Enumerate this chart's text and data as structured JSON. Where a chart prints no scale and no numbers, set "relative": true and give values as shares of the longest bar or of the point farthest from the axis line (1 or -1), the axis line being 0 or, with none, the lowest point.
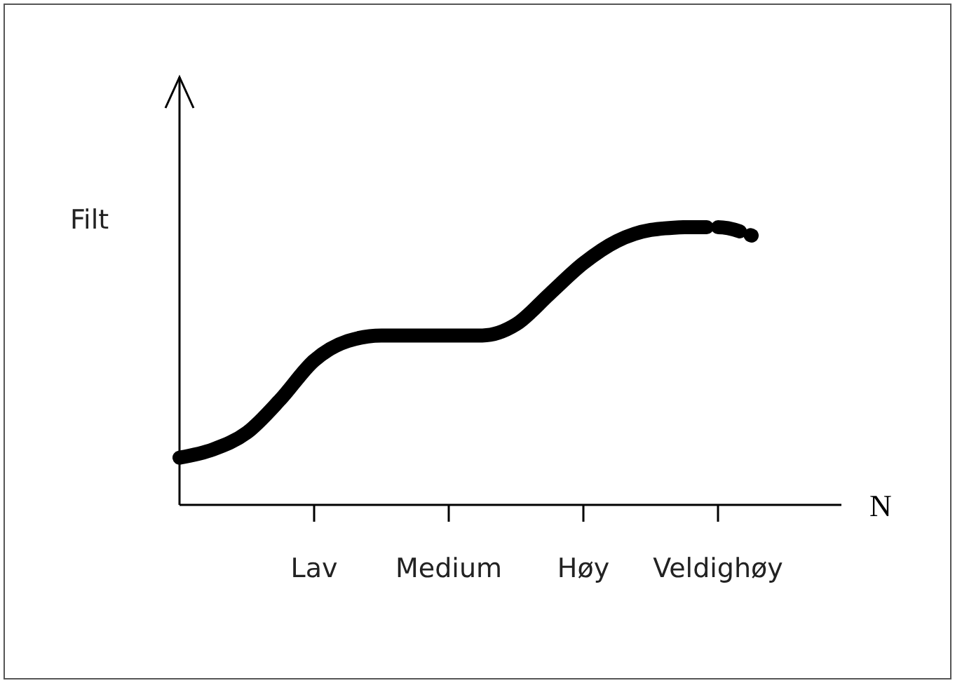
{
  "chart_data": {
    "type": "line",
    "relative": true,
    "xlabel": "N",
    "ylabel": "Filt",
    "categories": [
      null,
      null,
      null,
      null,
      "Lav",
      null,
      null,
      null,
      "Medium",
      null,
      null,
      null,
      "Høy",
      null,
      null,
      null,
      "Veldighøy",
      null
    ],
    "series": [
      {
        "color": "#000000",
        "line_style": "solid",
        "values": [
          0.17,
          0.2,
          0.26,
          0.38,
          0.52,
          0.59,
          0.61,
          0.61,
          0.61,
          0.61,
          0.65,
          0.76,
          0.87,
          0.95,
          0.99,
          1,
          null,
          null
        ]
      },
      {
        "color": "#000000",
        "line_style": "dashed",
        "values": [
          null,
          null,
          null,
          null,
          null,
          null,
          null,
          null,
          null,
          null,
          null,
          null,
          null,
          null,
          null,
          1,
          1,
          0.97
        ]
      }
    ]
  }
}
